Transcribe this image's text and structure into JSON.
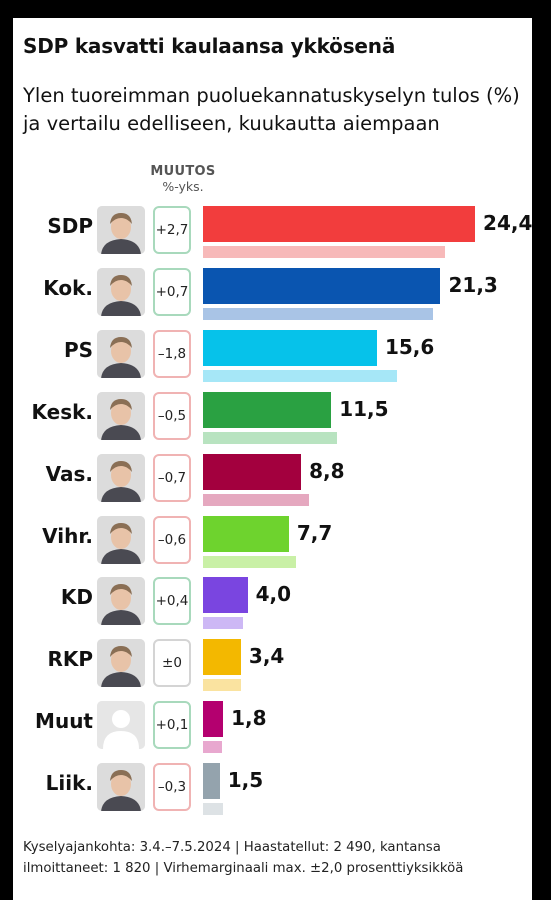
{
  "title": "SDP kasvatti kaulaansa ykkösenä",
  "subtitle": "Ylen tuoreimman puoluekannatuskyselyn tulos (%) ja vertailu edelliseen, kuukautta aiempaan",
  "change_header": {
    "line1": "MUUTOS",
    "line2": "%-yks."
  },
  "footnote": "Kyselyajankohta: 3.4.–7.5.2024 | Haastatellut: 2 490, kantansa ilmoittaneet: 1 820 | Virhemarginaali max. ±2,0 prosenttiyksikköä",
  "chart_data": {
    "type": "bar",
    "orientation": "horizontal",
    "title": "SDP kasvatti kaulaansa ykkösenä",
    "categories": [
      "SDP",
      "Kok.",
      "PS",
      "Kesk.",
      "Vas.",
      "Vihr.",
      "KD",
      "RKP",
      "Muut",
      "Liik."
    ],
    "value_labels": [
      "24,4",
      "21,3",
      "15,6",
      "11,5",
      "8,8",
      "7,7",
      "4,0",
      "3,4",
      "1,8",
      "1,5"
    ],
    "change_labels": [
      "+2,7",
      "+0,7",
      "–1,8",
      "–0,5",
      "–0,7",
      "–0,6",
      "+0,4",
      "±0",
      "+0,1",
      "–0,3"
    ],
    "series": [
      {
        "values": [
          24.4,
          21.3,
          15.6,
          11.5,
          8.8,
          7.7,
          4.0,
          3.4,
          1.8,
          1.5
        ]
      },
      {
        "values": [
          21.7,
          20.6,
          17.4,
          12.0,
          9.5,
          8.3,
          3.6,
          3.4,
          1.7,
          1.8
        ]
      }
    ],
    "change": [
      2.7,
      0.7,
      -1.8,
      -0.5,
      -0.7,
      -0.6,
      0.4,
      0.0,
      0.1,
      -0.3
    ],
    "colors": [
      "#f23d3d",
      "#0a55b0",
      "#06c2ea",
      "#2aa142",
      "#a3003e",
      "#6ed32e",
      "#7a45e0",
      "#f3b800",
      "#b4006f",
      "#94a3ad"
    ],
    "prev_colors": [
      "#f7b9b9",
      "#a9c4e6",
      "#a6e7f7",
      "#b8e3c0",
      "#e5a8bf",
      "#c9f0a6",
      "#cdb8f5",
      "#fae3a0",
      "#e8a8cf",
      "#dde2e5"
    ],
    "photos": [
      "portrait",
      "portrait",
      "portrait",
      "portrait",
      "portrait",
      "portrait",
      "portrait",
      "portrait",
      "placeholder-person-icon",
      "portrait"
    ]
  }
}
